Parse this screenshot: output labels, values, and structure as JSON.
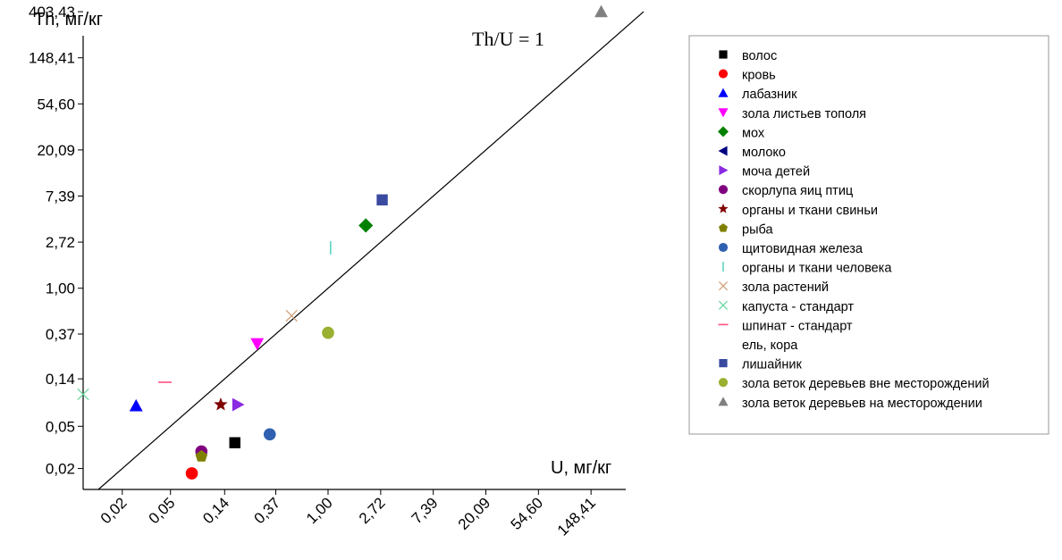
{
  "chart_data": {
    "type": "scatter",
    "xlabel": "U, мг/кг",
    "ylabel": "Th, мг/кг",
    "x_scale": "log",
    "y_scale": "log",
    "xlim": [
      0.0095,
      403.43
    ],
    "ylim": [
      0.0127,
      520
    ],
    "x_ticks": [
      0.02,
      0.05,
      0.14,
      0.37,
      1.0,
      2.72,
      7.39,
      20.09,
      54.6,
      148.41
    ],
    "x_tick_labels": [
      "0,02",
      "0,05",
      "0,14",
      "0,37",
      "1,00",
      "2,72",
      "7,39",
      "20,09",
      "54,60",
      "148,41"
    ],
    "y_ticks": [
      0.02,
      0.05,
      0.14,
      0.37,
      1.0,
      2.72,
      7.39,
      20.09,
      54.6,
      148.41,
      403.43
    ],
    "y_tick_labels": [
      "0,02",
      "0,05",
      "0,14",
      "0,37",
      "1,00",
      "2,72",
      "7,39",
      "20,09",
      "54,60",
      "148,41",
      "403,43"
    ],
    "annotation": "Th/U = 1",
    "reference_line": {
      "label": "Th/U = 1",
      "slope": 1
    },
    "grid": false,
    "legend_placement": "right",
    "series": [
      {
        "name": "волос",
        "marker": "square",
        "color": "#000000",
        "points": [
          [
            0.17,
            0.035
          ]
        ]
      },
      {
        "name": "кровь",
        "marker": "circle",
        "color": "#ff0000",
        "points": [
          [
            0.075,
            0.018
          ]
        ]
      },
      {
        "name": "лабазник",
        "marker": "triangle-up",
        "color": "#0000ff",
        "points": [
          [
            0.026,
            0.078
          ]
        ]
      },
      {
        "name": "зола листьев тополя",
        "marker": "triangle-down",
        "color": "#ff00ff",
        "points": [
          [
            0.26,
            0.3
          ]
        ]
      },
      {
        "name": "мох",
        "marker": "diamond",
        "color": "#008000",
        "points": [
          [
            2.05,
            3.9
          ]
        ]
      },
      {
        "name": "молоко",
        "marker": "triangle-left",
        "color": "#000080",
        "points": []
      },
      {
        "name": "моча детей",
        "marker": "triangle-right",
        "color": "#8a2be2",
        "points": [
          [
            0.18,
            0.08
          ]
        ]
      },
      {
        "name": "скорлупа яиц птиц",
        "marker": "circle",
        "color": "#800080",
        "points": [
          [
            0.09,
            0.029
          ]
        ]
      },
      {
        "name": "органы и ткани свиньи",
        "marker": "star",
        "color": "#800000",
        "points": [
          [
            0.13,
            0.08
          ]
        ]
      },
      {
        "name": "рыба",
        "marker": "pentagon",
        "color": "#808000",
        "points": [
          [
            0.09,
            0.026
          ]
        ]
      },
      {
        "name": "щитовидная железа",
        "marker": "circle",
        "color": "#3060b0",
        "points": [
          [
            0.33,
            0.042
          ]
        ]
      },
      {
        "name": "органы и ткани человека",
        "marker": "vline",
        "color": "#5fd3c0",
        "points": [
          [
            1.05,
            2.4
          ]
        ]
      },
      {
        "name": "зола растений",
        "marker": "x",
        "color": "#d2a07a",
        "points": [
          [
            0.5,
            0.55
          ]
        ]
      },
      {
        "name": "капуста - стандарт",
        "marker": "x",
        "color": "#6ad6a0",
        "points": [
          [
            0.0095,
            0.1
          ]
        ]
      },
      {
        "name": "шпинат - стандарт",
        "marker": "hline",
        "color": "#ff5080",
        "points": [
          [
            0.045,
            0.13
          ]
        ]
      },
      {
        "name": "ель, кора",
        "marker": "none",
        "color": "#000000",
        "points": []
      },
      {
        "name": "лишайник",
        "marker": "square",
        "color": "#3a4aa0",
        "points": [
          [
            2.8,
            6.8
          ]
        ]
      },
      {
        "name": "зола веток деревьев вне месторождений",
        "marker": "circle",
        "color": "#99b030",
        "points": [
          [
            1.0,
            0.38
          ]
        ]
      },
      {
        "name": "зола веток деревьев на месторождении",
        "marker": "triangle-up",
        "color": "#808080",
        "points": [
          [
            180,
            403.43
          ]
        ]
      }
    ]
  }
}
